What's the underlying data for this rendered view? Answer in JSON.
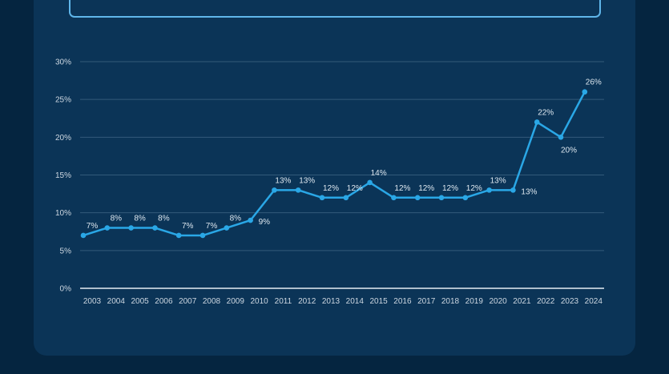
{
  "chart_data": {
    "type": "line",
    "title": "",
    "xlabel": "",
    "ylabel": "",
    "categories": [
      "2003",
      "2004",
      "2005",
      "2006",
      "2007",
      "2008",
      "2009",
      "2010",
      "2011",
      "2012",
      "2013",
      "2014",
      "2015",
      "2016",
      "2017",
      "2018",
      "2019",
      "2020",
      "2021",
      "2022",
      "2023",
      "2024"
    ],
    "series": [
      {
        "values": [
          7,
          8,
          8,
          8,
          7,
          7,
          8,
          9,
          13,
          13,
          12,
          12,
          14,
          12,
          12,
          12,
          12,
          13,
          13,
          22,
          20,
          26
        ],
        "labels": [
          "7%",
          "8%",
          "8%",
          "8%",
          "7%",
          "7%",
          "8%",
          "9%",
          "13%",
          "13%",
          "12%",
          "12%",
          "14%",
          "12%",
          "12%",
          "12%",
          "12%",
          "13%",
          "13%",
          "22%",
          "20%",
          "26%"
        ]
      }
    ],
    "ylim": [
      0,
      30
    ],
    "yticks": [
      0,
      5,
      10,
      15,
      20,
      25,
      30
    ],
    "ytick_labels": [
      "0%",
      "5%",
      "10%",
      "15%",
      "20%",
      "25%",
      "30%"
    ],
    "grid": true,
    "colors": {
      "line": "#2aa7e6",
      "grid": "#335a7a",
      "axis": "#e6edf3",
      "frame": "#5fb6ea"
    }
  }
}
